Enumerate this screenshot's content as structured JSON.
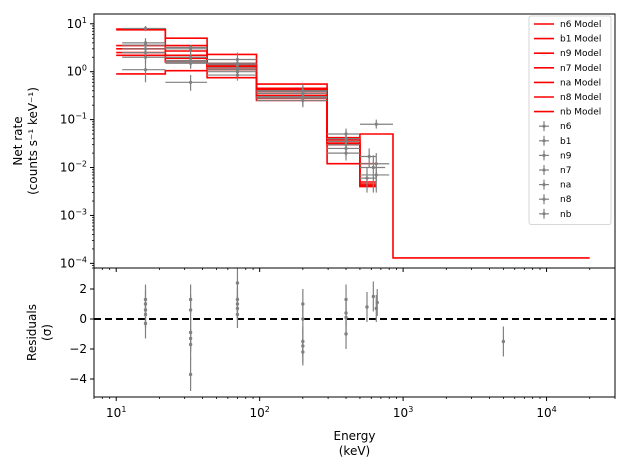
{
  "chart_data": [
    {
      "type": "line",
      "panel": "top",
      "xscale": "log",
      "yscale": "log",
      "xlim": [
        7,
        30000
      ],
      "ylim": [
        8e-05,
        16
      ],
      "ylabel": [
        "Net rate",
        "(counts s⁻¹ keV⁻¹)"
      ],
      "xticks": [
        {
          "value": 10,
          "base": "10",
          "exp": "1"
        },
        {
          "value": 100,
          "base": "10",
          "exp": "2"
        },
        {
          "value": 1000,
          "base": "10",
          "exp": "3"
        },
        {
          "value": 10000,
          "base": "10",
          "exp": "4"
        }
      ],
      "yticks": [
        {
          "value": 0.0001,
          "base": "10",
          "exp": "−4"
        },
        {
          "value": 0.001,
          "base": "10",
          "exp": "−3"
        },
        {
          "value": 0.01,
          "base": "10",
          "exp": "−2"
        },
        {
          "value": 0.1,
          "base": "10",
          "exp": "−1"
        },
        {
          "value": 1,
          "base": "10",
          "exp": "0"
        },
        {
          "value": 10,
          "base": "10",
          "exp": "1"
        }
      ],
      "model_color": "#ff0000",
      "data_color": "#808080",
      "legend_position": "top-right",
      "legend": [
        "n6 Model",
        "b1 Model",
        "n9 Model",
        "n7 Model",
        "na Model",
        "n8 Model",
        "nb Model",
        "n6",
        "b1",
        "n9",
        "n7",
        "na",
        "n8",
        "nb"
      ],
      "models": [
        {
          "name": "n6 Model",
          "edges": [
            10,
            22,
            43,
            95,
            295,
            500
          ],
          "values": [
            7.5,
            3.5,
            1.3,
            0.38,
            0.032
          ]
        },
        {
          "name": "b1 Model",
          "edges": [
            10,
            22,
            43,
            95,
            295,
            500,
            850,
            20000
          ],
          "values": [
            7.8,
            5.0,
            2.3,
            0.55,
            0.042,
            0.05,
            0.00013
          ]
        },
        {
          "name": "n9 Model",
          "edges": [
            10,
            22,
            43,
            95,
            295,
            500,
            650
          ],
          "values": [
            3.0,
            2.2,
            1.5,
            0.42,
            0.038,
            0.012
          ]
        },
        {
          "name": "n7 Model",
          "edges": [
            10,
            22,
            43,
            95,
            295,
            500,
            650
          ],
          "values": [
            0.9,
            1.05,
            0.75,
            0.25,
            0.012,
            0.0045
          ]
        },
        {
          "name": "na Model",
          "edges": [
            10,
            22,
            43,
            95,
            295,
            500,
            650
          ],
          "values": [
            2.5,
            1.9,
            1.2,
            0.32,
            0.035,
            0.004
          ]
        },
        {
          "name": "n8 Model",
          "edges": [
            10,
            22,
            43,
            95,
            295,
            500,
            650
          ],
          "values": [
            3.5,
            2.7,
            1.4,
            0.45,
            0.03,
            0.005
          ]
        },
        {
          "name": "nb Model",
          "edges": [
            10,
            22,
            43,
            95,
            295,
            500,
            650
          ],
          "values": [
            2.2,
            1.6,
            1.1,
            0.28,
            0.04,
            0.0042
          ]
        }
      ],
      "data": [
        {
          "name": "n6",
          "points": [
            {
              "x": 16,
              "lo": 11,
              "hi": 22,
              "y": 8.0,
              "elo": 7.0,
              "ehi": 9.0
            },
            {
              "x": 33,
              "lo": 22,
              "hi": 43,
              "y": 3.2,
              "elo": 2.9,
              "ehi": 3.6
            },
            {
              "x": 70,
              "lo": 43,
              "hi": 95,
              "y": 1.4,
              "elo": 1.1,
              "ehi": 1.7
            },
            {
              "x": 200,
              "lo": 95,
              "hi": 295,
              "y": 0.3,
              "elo": 0.22,
              "ehi": 0.4
            },
            {
              "x": 400,
              "lo": 295,
              "hi": 500,
              "y": 0.04,
              "elo": 0.028,
              "ehi": 0.055
            }
          ]
        },
        {
          "name": "b1",
          "points": [
            {
              "x": 16,
              "lo": 11,
              "hi": 22,
              "y": 4.0,
              "elo": 3.0,
              "ehi": 5.0
            },
            {
              "x": 33,
              "lo": 22,
              "hi": 43,
              "y": 3.0,
              "elo": 2.4,
              "ehi": 3.6
            },
            {
              "x": 70,
              "lo": 43,
              "hi": 95,
              "y": 1.8,
              "elo": 1.3,
              "ehi": 2.5
            },
            {
              "x": 200,
              "lo": 95,
              "hi": 295,
              "y": 0.4,
              "elo": 0.3,
              "ehi": 0.55
            },
            {
              "x": 400,
              "lo": 295,
              "hi": 500,
              "y": 0.04,
              "elo": 0.028,
              "ehi": 0.058
            },
            {
              "x": 650,
              "lo": 500,
              "hi": 850,
              "y": 0.08,
              "elo": 0.065,
              "ehi": 0.1
            }
          ]
        },
        {
          "name": "n9",
          "points": [
            {
              "x": 16,
              "lo": 11,
              "hi": 22,
              "y": 3.6,
              "elo": 2.8,
              "ehi": 4.5
            },
            {
              "x": 33,
              "lo": 22,
              "hi": 43,
              "y": 1.7,
              "elo": 1.3,
              "ehi": 2.2
            },
            {
              "x": 70,
              "lo": 43,
              "hi": 95,
              "y": 1.1,
              "elo": 0.85,
              "ehi": 1.4
            },
            {
              "x": 200,
              "lo": 95,
              "hi": 295,
              "y": 0.35,
              "elo": 0.26,
              "ehi": 0.45
            },
            {
              "x": 400,
              "lo": 295,
              "hi": 500,
              "y": 0.05,
              "elo": 0.037,
              "ehi": 0.065
            },
            {
              "x": 580,
              "lo": 500,
              "hi": 650,
              "y": 0.017,
              "elo": 0.01,
              "ehi": 0.025
            }
          ]
        },
        {
          "name": "n7",
          "points": [
            {
              "x": 16,
              "lo": 11,
              "hi": 22,
              "y": 1.1,
              "elo": 0.6,
              "ehi": 1.8
            },
            {
              "x": 33,
              "lo": 22,
              "hi": 43,
              "y": 0.6,
              "elo": 0.4,
              "ehi": 0.85
            },
            {
              "x": 70,
              "lo": 43,
              "hi": 95,
              "y": 0.85,
              "elo": 0.65,
              "ehi": 1.1
            },
            {
              "x": 200,
              "lo": 95,
              "hi": 295,
              "y": 0.28,
              "elo": 0.2,
              "ehi": 0.38
            },
            {
              "x": 400,
              "lo": 295,
              "hi": 500,
              "y": 0.025,
              "elo": 0.017,
              "ehi": 0.035
            },
            {
              "x": 650,
              "lo": 500,
              "hi": 800,
              "y": 0.012,
              "elo": 0.005,
              "ehi": 0.02
            }
          ]
        },
        {
          "name": "na",
          "points": [
            {
              "x": 16,
              "lo": 11,
              "hi": 22,
              "y": 3.0,
              "elo": 2.3,
              "ehi": 3.8
            },
            {
              "x": 33,
              "lo": 22,
              "hi": 43,
              "y": 1.5,
              "elo": 1.15,
              "ehi": 1.9
            },
            {
              "x": 70,
              "lo": 43,
              "hi": 95,
              "y": 1.2,
              "elo": 0.95,
              "ehi": 1.5
            },
            {
              "x": 200,
              "lo": 95,
              "hi": 295,
              "y": 0.3,
              "elo": 0.22,
              "ehi": 0.4
            },
            {
              "x": 400,
              "lo": 295,
              "hi": 500,
              "y": 0.035,
              "elo": 0.025,
              "ehi": 0.048
            },
            {
              "x": 620,
              "lo": 500,
              "hi": 750,
              "y": 0.01,
              "elo": 0.003,
              "ehi": 0.018
            }
          ]
        },
        {
          "name": "n8",
          "points": [
            {
              "x": 16,
              "lo": 11,
              "hi": 22,
              "y": 2.5,
              "elo": 1.9,
              "ehi": 3.2
            },
            {
              "x": 33,
              "lo": 22,
              "hi": 43,
              "y": 2.0,
              "elo": 1.6,
              "ehi": 2.5
            },
            {
              "x": 70,
              "lo": 43,
              "hi": 95,
              "y": 1.5,
              "elo": 1.2,
              "ehi": 1.9
            },
            {
              "x": 200,
              "lo": 95,
              "hi": 295,
              "y": 0.38,
              "elo": 0.29,
              "ehi": 0.5
            },
            {
              "x": 400,
              "lo": 295,
              "hi": 500,
              "y": 0.03,
              "elo": 0.022,
              "ehi": 0.04
            },
            {
              "x": 650,
              "lo": 500,
              "hi": 800,
              "y": 0.007,
              "elo": 0.003,
              "ehi": 0.012
            }
          ]
        },
        {
          "name": "nb",
          "points": [
            {
              "x": 16,
              "lo": 11,
              "hi": 22,
              "y": 2.0,
              "elo": 1.5,
              "ehi": 2.6
            },
            {
              "x": 33,
              "lo": 22,
              "hi": 43,
              "y": 1.6,
              "elo": 1.25,
              "ehi": 2.0
            },
            {
              "x": 70,
              "lo": 43,
              "hi": 95,
              "y": 1.0,
              "elo": 0.8,
              "ehi": 1.25
            },
            {
              "x": 200,
              "lo": 95,
              "hi": 295,
              "y": 0.25,
              "elo": 0.18,
              "ehi": 0.33
            },
            {
              "x": 400,
              "lo": 295,
              "hi": 500,
              "y": 0.02,
              "elo": 0.014,
              "ehi": 0.028
            },
            {
              "x": 560,
              "lo": 500,
              "hi": 650,
              "y": 0.006,
              "elo": 0.003,
              "ehi": 0.01
            }
          ]
        }
      ]
    },
    {
      "type": "scatter",
      "panel": "bottom",
      "xscale": "log",
      "xlim": [
        7,
        30000
      ],
      "ylim": [
        -5.2,
        3.4
      ],
      "xlabel": [
        "Energy",
        "(keV)"
      ],
      "ylabel": [
        "Residuals",
        "(σ)"
      ],
      "yticks": [
        -4,
        -2,
        0,
        2
      ],
      "reference_line": 0,
      "points": [
        {
          "x": 16,
          "y": 1.3,
          "e": 1.0
        },
        {
          "x": 16,
          "y": 1.0,
          "e": 0.9
        },
        {
          "x": 16,
          "y": 0.6,
          "e": 0.8
        },
        {
          "x": 16,
          "y": 0.3,
          "e": 0.9
        },
        {
          "x": 16,
          "y": -0.3,
          "e": 1.0
        },
        {
          "x": 33,
          "y": 1.3,
          "e": 1.0
        },
        {
          "x": 33,
          "y": 0.6,
          "e": 1.0
        },
        {
          "x": 33,
          "y": -0.9,
          "e": 1.0
        },
        {
          "x": 33,
          "y": -1.3,
          "e": 0.9
        },
        {
          "x": 33,
          "y": -1.7,
          "e": 1.0
        },
        {
          "x": 33,
          "y": -3.7,
          "e": 1.1
        },
        {
          "x": 70,
          "y": 2.4,
          "e": 1.1
        },
        {
          "x": 70,
          "y": 1.3,
          "e": 0.9
        },
        {
          "x": 70,
          "y": 1.0,
          "e": 1.0
        },
        {
          "x": 70,
          "y": 0.7,
          "e": 0.8
        },
        {
          "x": 70,
          "y": 0.3,
          "e": 0.9
        },
        {
          "x": 200,
          "y": 1.0,
          "e": 1.0
        },
        {
          "x": 200,
          "y": 0.0,
          "e": 0.9
        },
        {
          "x": 200,
          "y": -1.5,
          "e": 1.0
        },
        {
          "x": 200,
          "y": -1.8,
          "e": 1.1
        },
        {
          "x": 200,
          "y": -2.2,
          "e": 0.9
        },
        {
          "x": 400,
          "y": 1.3,
          "e": 1.0
        },
        {
          "x": 400,
          "y": 0.4,
          "e": 0.9
        },
        {
          "x": 400,
          "y": 0.1,
          "e": 1.0
        },
        {
          "x": 400,
          "y": -1.0,
          "e": 1.0
        },
        {
          "x": 560,
          "y": 0.8,
          "e": 1.0
        },
        {
          "x": 620,
          "y": 1.5,
          "e": 1.0
        },
        {
          "x": 650,
          "y": 0.7,
          "e": 0.9
        },
        {
          "x": 660,
          "y": 1.1,
          "e": 0.9
        },
        {
          "x": 5000,
          "y": -1.5,
          "e": 1.0
        }
      ]
    }
  ]
}
